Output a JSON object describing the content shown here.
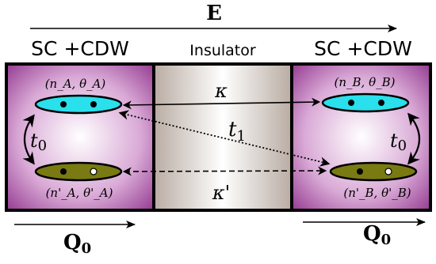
{
  "field": {
    "label": "E"
  },
  "regions": {
    "left": "SC +CDW",
    "middle": "Insulator",
    "right": "SC +CDW"
  },
  "states": {
    "left_top": "(n_A, θ_A)",
    "left_bottom": "(n'_A, θ'_A)",
    "right_top": "(n_B, θ_B)",
    "right_bottom": "(n'_B, θ'_B)"
  },
  "couplings": {
    "kappa": "κ",
    "kappa_prime": "κ'",
    "t1": "t",
    "t1_sub": "1",
    "t0_left": "t",
    "t0_left_sub": "0",
    "t0_right": "t",
    "t0_right_sub": "0"
  },
  "wavevector": {
    "left": "Q",
    "left_sub": "0",
    "right": "Q",
    "right_sub": "0"
  },
  "colors": {
    "sc_purple": "#8a2a86",
    "insulator": "#cdc3bc",
    "upper_band": "#29e0ec",
    "lower_band": "#7a7a12"
  }
}
